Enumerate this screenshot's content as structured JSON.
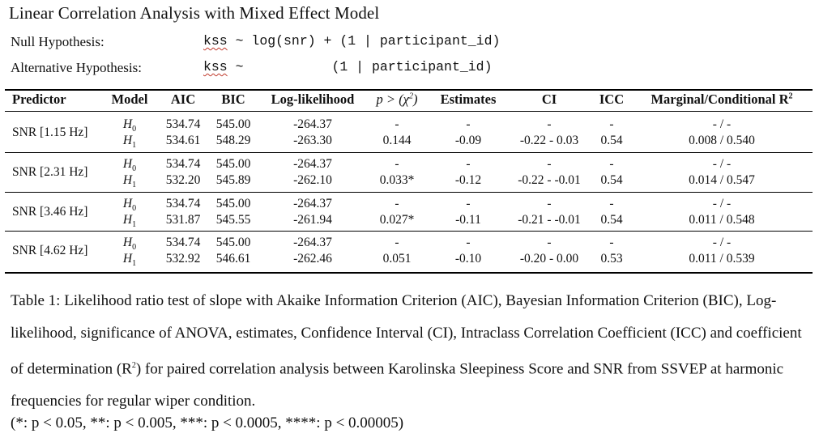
{
  "title": "Linear Correlation Analysis with Mixed Effect Model",
  "hypotheses": {
    "null_label": "Null Hypothesis:",
    "null_formula_a": "kss",
    "null_formula_b": " ~ log(snr) + (1 | participant_id)",
    "alt_label": "Alternative Hypothesis:",
    "alt_formula_a": "kss",
    "alt_formula_b": " ~           (1 | participant_id)"
  },
  "table": {
    "headers": {
      "predictor": "Predictor",
      "model": "Model",
      "aic": "AIC",
      "bic": "BIC",
      "loglik": "Log-likelihood",
      "p_a": "p > (χ",
      "p_sup": "2",
      "p_b": ")",
      "estimates": "Estimates",
      "ci": "CI",
      "icc": "ICC",
      "r2_a": "Marginal/Conditional R",
      "r2_sup": "2"
    },
    "rows": [
      {
        "predictor": "SNR [1.15 Hz]",
        "h0": {
          "model": "H",
          "sub": "0",
          "aic": "534.74",
          "bic": "545.00",
          "loglik": "-264.37",
          "p": "-",
          "est": "-",
          "ci": "-",
          "icc": "-",
          "r2": "- / -"
        },
        "h1": {
          "model": "H",
          "sub": "1",
          "aic": "534.61",
          "bic": "548.29",
          "loglik": "-263.30",
          "p": "0.144",
          "est": "-0.09",
          "ci": "-0.22 - 0.03",
          "icc": "0.54",
          "r2": "0.008 / 0.540"
        }
      },
      {
        "predictor": "SNR [2.31 Hz]",
        "h0": {
          "model": "H",
          "sub": "0",
          "aic": "534.74",
          "bic": "545.00",
          "loglik": "-264.37",
          "p": "-",
          "est": "-",
          "ci": "-",
          "icc": "-",
          "r2": "- / -"
        },
        "h1": {
          "model": "H",
          "sub": "1",
          "aic": "532.20",
          "bic": "545.89",
          "loglik": "-262.10",
          "p": "0.033*",
          "est": "-0.12",
          "ci": "-0.22 - -0.01",
          "icc": "0.54",
          "r2": "0.014 / 0.547"
        }
      },
      {
        "predictor": "SNR [3.46 Hz]",
        "h0": {
          "model": "H",
          "sub": "0",
          "aic": "534.74",
          "bic": "545.00",
          "loglik": "-264.37",
          "p": "-",
          "est": "-",
          "ci": "-",
          "icc": "-",
          "r2": "- / -"
        },
        "h1": {
          "model": "H",
          "sub": "1",
          "aic": "531.87",
          "bic": "545.55",
          "loglik": "-261.94",
          "p": "0.027*",
          "est": "-0.11",
          "ci": "-0.21 - -0.01",
          "icc": "0.54",
          "r2": "0.011 / 0.548"
        }
      },
      {
        "predictor": "SNR [4.62 Hz]",
        "h0": {
          "model": "H",
          "sub": "0",
          "aic": "534.74",
          "bic": "545.00",
          "loglik": "-264.37",
          "p": "-",
          "est": "-",
          "ci": "-",
          "icc": "-",
          "r2": "- / -"
        },
        "h1": {
          "model": "H",
          "sub": "1",
          "aic": "532.92",
          "bic": "546.61",
          "loglik": "-262.46",
          "p": "0.051",
          "est": "-0.10",
          "ci": "-0.20 - 0.00",
          "icc": "0.53",
          "r2": "0.011 / 0.539"
        }
      }
    ]
  },
  "caption": {
    "part1": "Table 1: Likelihood ratio test of slope with Akaike Information Criterion (AIC), Bayesian Information Criterion (BIC), Log-likelihood, significance of ANOVA, estimates, Confidence Interval (CI), Intraclass Correlation Coefficient (ICC) and coefficient of determination (R",
    "sup": "2",
    "part2": ") for paired correlation analysis between Karolinska Sleepiness Score and SNR from SSVEP at harmonic frequencies for regular wiper condition.",
    "note": "(*: p < 0.05, **: p < 0.005, ***: p < 0.0005, ****: p < 0.00005)"
  }
}
